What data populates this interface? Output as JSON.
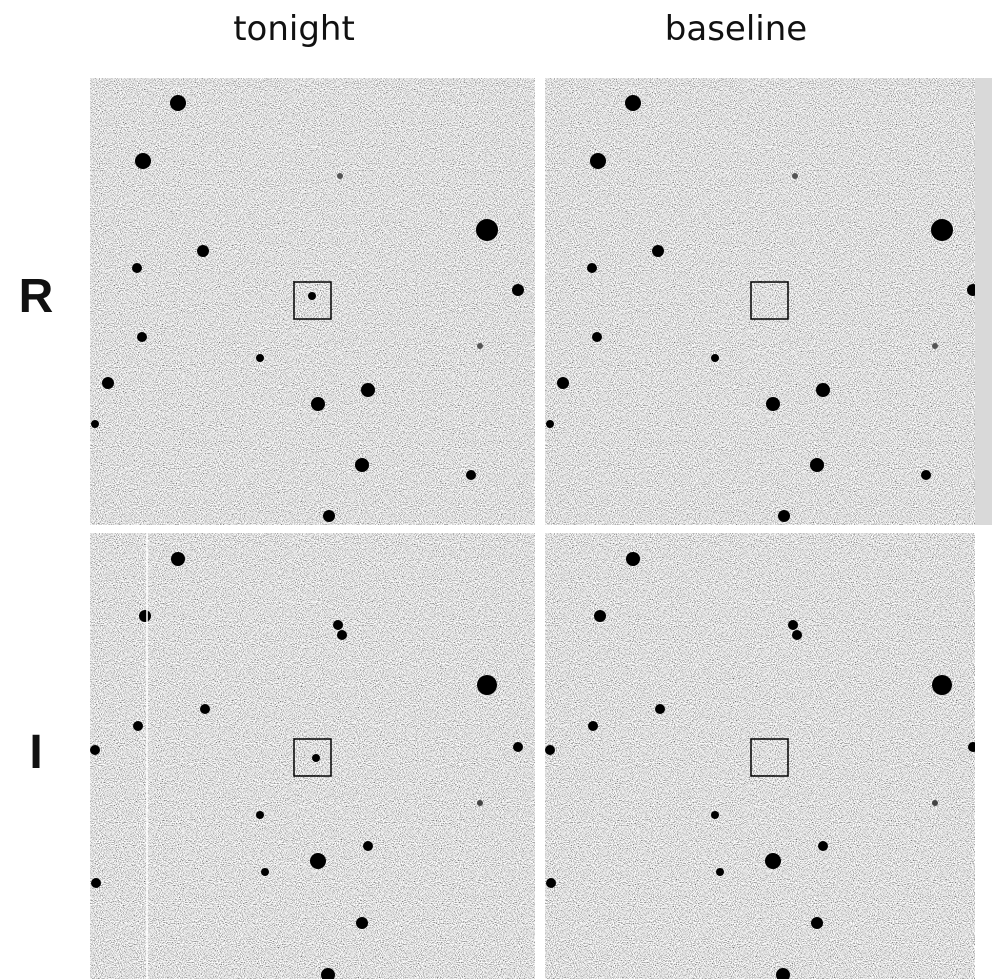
{
  "header": {
    "columns": [
      "tonight",
      "baseline"
    ]
  },
  "rows": [
    "R",
    "I"
  ]
}
